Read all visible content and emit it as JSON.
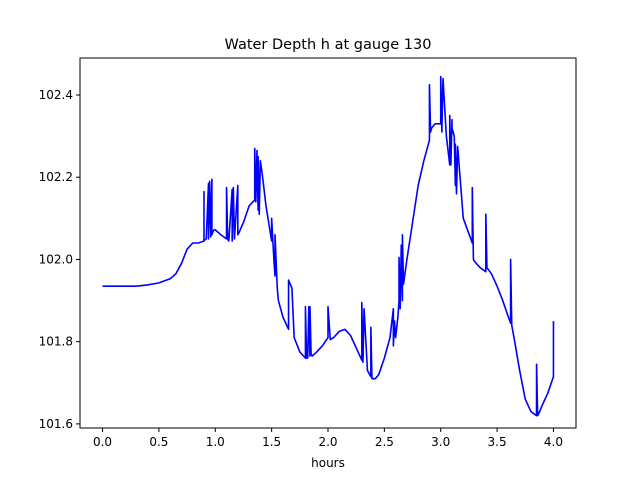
{
  "chart_data": {
    "type": "line",
    "title": "Water Depth h at gauge 130",
    "xlabel": "hours",
    "ylabel": "",
    "xlim": [
      -0.2,
      4.2
    ],
    "ylim": [
      101.59,
      102.49
    ],
    "xticks": [
      0.0,
      0.5,
      1.0,
      1.5,
      2.0,
      2.5,
      3.0,
      3.5,
      4.0
    ],
    "xtick_labels": [
      "0.0",
      "0.5",
      "1.0",
      "1.5",
      "2.0",
      "2.5",
      "3.0",
      "3.5",
      "4.0"
    ],
    "yticks": [
      101.6,
      101.8,
      102.0,
      102.2,
      102.4
    ],
    "ytick_labels": [
      "101.6",
      "101.8",
      "102.0",
      "102.2",
      "102.4"
    ],
    "grid": false,
    "series": [
      {
        "color": "#0000ff",
        "x": [
          0.0,
          0.1,
          0.2,
          0.3,
          0.4,
          0.5,
          0.6,
          0.65,
          0.7,
          0.75,
          0.8,
          0.85,
          0.9,
          0.9,
          0.9,
          0.91,
          0.92,
          0.94,
          0.94,
          0.95,
          0.96,
          0.97,
          0.97,
          0.98,
          0.99,
          1.0,
          1.05,
          1.1,
          1.1,
          1.11,
          1.12,
          1.15,
          1.15,
          1.16,
          1.17,
          1.2,
          1.2,
          1.21,
          1.25,
          1.3,
          1.35,
          1.35,
          1.36,
          1.37,
          1.38,
          1.38,
          1.39,
          1.4,
          1.41,
          1.42,
          1.45,
          1.5,
          1.5,
          1.52,
          1.53,
          1.53,
          1.55,
          1.56,
          1.6,
          1.65,
          1.65,
          1.68,
          1.7,
          1.75,
          1.8,
          1.8,
          1.81,
          1.82,
          1.83,
          1.84,
          1.84,
          1.85,
          1.86,
          1.9,
          1.95,
          2.0,
          2.0,
          2.02,
          2.05,
          2.1,
          2.15,
          2.2,
          2.25,
          2.3,
          2.3,
          2.31,
          2.32,
          2.35,
          2.38,
          2.38,
          2.39,
          2.42,
          2.45,
          2.5,
          2.55,
          2.58,
          2.58,
          2.59,
          2.6,
          2.62,
          2.63,
          2.63,
          2.64,
          2.65,
          2.66,
          2.66,
          2.67,
          2.7,
          2.75,
          2.8,
          2.85,
          2.9,
          2.9,
          2.91,
          2.92,
          2.95,
          3.0,
          3.0,
          3.01,
          3.02,
          3.05,
          3.08,
          3.08,
          3.09,
          3.1,
          3.1,
          3.12,
          3.13,
          3.13,
          3.14,
          3.15,
          3.2,
          3.28,
          3.28,
          3.29,
          3.3,
          3.35,
          3.4,
          3.4,
          3.41,
          3.45,
          3.5,
          3.55,
          3.6,
          3.62,
          3.62,
          3.63,
          3.65,
          3.7,
          3.75,
          3.8,
          3.85,
          3.85,
          3.86,
          3.87,
          3.9,
          3.95,
          4.0,
          4.0
        ],
        "y": [
          101.935,
          101.935,
          101.935,
          101.935,
          101.938,
          101.943,
          101.953,
          101.965,
          101.99,
          102.025,
          102.04,
          102.04,
          102.045,
          102.165,
          102.045,
          102.048,
          102.05,
          102.185,
          102.05,
          102.19,
          102.055,
          102.195,
          102.06,
          102.068,
          102.072,
          102.072,
          102.06,
          102.05,
          102.175,
          102.05,
          102.045,
          102.17,
          102.045,
          102.175,
          102.05,
          102.18,
          102.06,
          102.065,
          102.09,
          102.13,
          102.145,
          102.27,
          102.14,
          102.265,
          102.12,
          102.25,
          102.11,
          102.24,
          102.22,
          102.2,
          102.13,
          102.045,
          102.1,
          102.0,
          101.96,
          102.06,
          101.93,
          101.9,
          101.86,
          101.83,
          101.95,
          101.93,
          101.81,
          101.775,
          101.76,
          101.885,
          101.76,
          101.76,
          101.885,
          101.765,
          101.885,
          101.77,
          101.765,
          101.775,
          101.79,
          101.81,
          101.885,
          101.805,
          101.81,
          101.825,
          101.83,
          101.815,
          101.785,
          101.755,
          101.895,
          101.75,
          101.88,
          101.73,
          101.715,
          101.835,
          101.71,
          101.71,
          101.72,
          101.76,
          101.81,
          101.88,
          101.79,
          101.85,
          101.81,
          101.86,
          101.9,
          102.005,
          101.88,
          102.035,
          101.9,
          102.06,
          101.94,
          102.0,
          102.09,
          102.18,
          102.24,
          102.29,
          102.425,
          102.31,
          102.32,
          102.33,
          102.33,
          102.445,
          102.31,
          102.44,
          102.3,
          102.23,
          102.35,
          102.23,
          102.34,
          102.32,
          102.3,
          102.18,
          102.28,
          102.16,
          102.275,
          102.1,
          102.04,
          102.175,
          102.0,
          101.995,
          101.98,
          101.97,
          102.11,
          101.98,
          101.965,
          101.935,
          101.9,
          101.86,
          101.845,
          102.0,
          101.84,
          101.81,
          101.73,
          101.66,
          101.63,
          101.62,
          101.745,
          101.62,
          101.625,
          101.645,
          101.675,
          101.715,
          101.85
        ]
      }
    ]
  }
}
